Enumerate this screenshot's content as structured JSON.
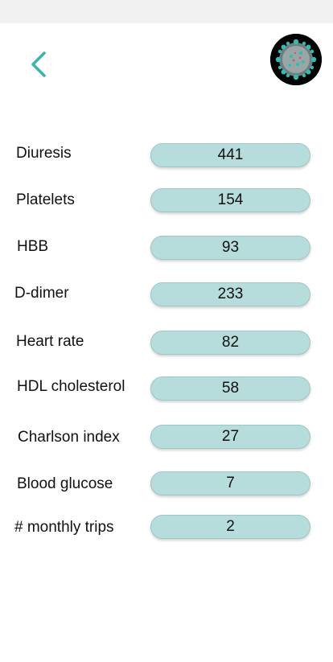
{
  "header": {
    "back_icon": "chevron-left-icon",
    "avatar_icon": "virus-icon",
    "accent_color": "#3bb3ad"
  },
  "rows": [
    {
      "label": "Diuresis",
      "value": "441"
    },
    {
      "label": "Platelets",
      "value": "154"
    },
    {
      "label": "HBB",
      "value": "93"
    },
    {
      "label": "D-dimer",
      "value": "233"
    },
    {
      "label": "Heart rate",
      "value": "82"
    },
    {
      "label": "HDL cholesterol",
      "value": "58"
    },
    {
      "label": "Charlson index",
      "value": "27"
    },
    {
      "label": "Blood glucose",
      "value": "7"
    },
    {
      "label": "# monthly trips",
      "value": "2"
    }
  ]
}
